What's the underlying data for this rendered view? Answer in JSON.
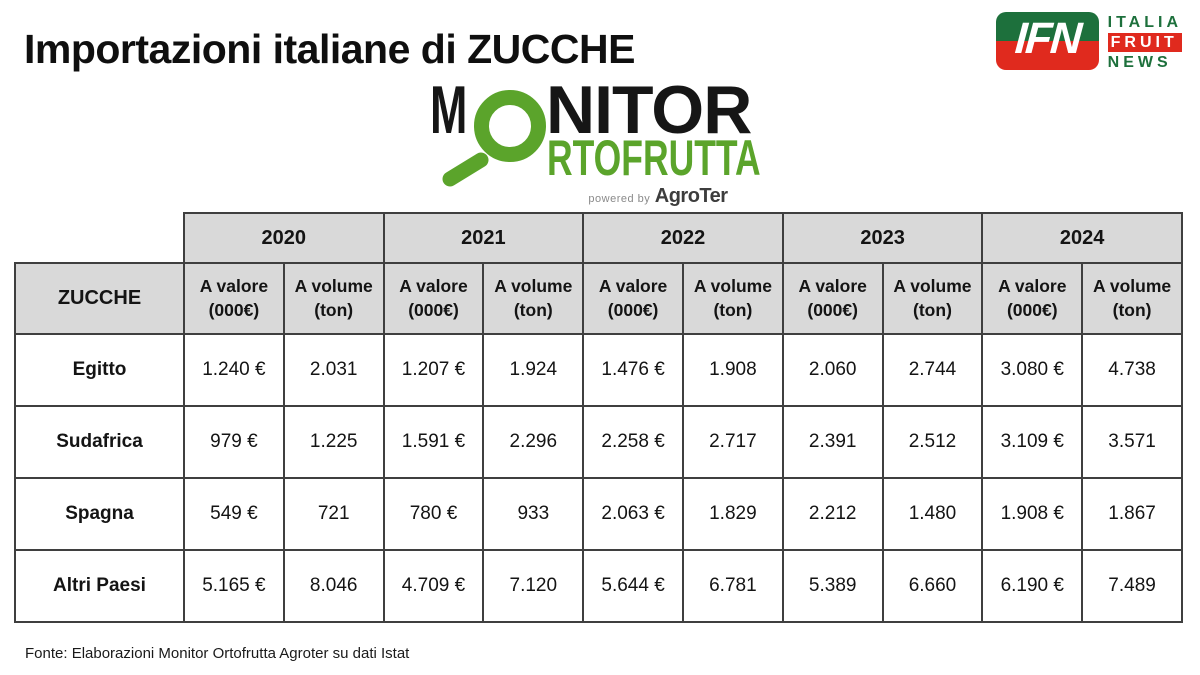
{
  "header": {
    "title": "Importazioni italiane di ZUCCHE"
  },
  "ifn_logo": {
    "acronym": "IFN",
    "lines": [
      "ITALIA",
      "FRUIT",
      "NEWS"
    ],
    "green": "#1d703c",
    "red": "#e02a1e"
  },
  "monitor_logo": {
    "top_prefix": "M",
    "top_suffix": "NITOR",
    "bottom_word": "RTOFRUTTA",
    "powered_by": "powered by",
    "brand": "AgroTer",
    "green": "#5ba42b"
  },
  "table": {
    "corner_label": "ZUCCHE",
    "years": [
      "2020",
      "2021",
      "2022",
      "2023",
      "2024"
    ],
    "subheaders": [
      {
        "line1": "A valore",
        "line2": "(000€)"
      },
      {
        "line1": "A volume",
        "line2": "(ton)"
      }
    ],
    "rows": [
      {
        "label": "Egitto",
        "cells": [
          "1.240 €",
          "2.031",
          "1.207 €",
          "1.924",
          "1.476 €",
          "1.908",
          "2.060",
          "2.744",
          "3.080 €",
          "4.738"
        ]
      },
      {
        "label": "Sudafrica",
        "cells": [
          "979 €",
          "1.225",
          "1.591 €",
          "2.296",
          "2.258 €",
          "2.717",
          "2.391",
          "2.512",
          "3.109 €",
          "3.571"
        ]
      },
      {
        "label": "Spagna",
        "cells": [
          "549 €",
          "721",
          "780 €",
          "933",
          "2.063 €",
          "1.829",
          "2.212",
          "1.480",
          "1.908 €",
          "1.867"
        ]
      },
      {
        "label": "Altri Paesi",
        "cells": [
          "5.165 €",
          "8.046",
          "4.709 €",
          "7.120",
          "5.644 €",
          "6.781",
          "5.389",
          "6.660",
          "6.190 €",
          "7.489"
        ]
      }
    ],
    "header_bg": "#d9d9d9",
    "border_color": "#3f3f3f"
  },
  "footer": {
    "source": "Fonte: Elaborazioni Monitor Ortofrutta Agroter su dati Istat"
  },
  "chart_data": {
    "type": "table",
    "title": "Importazioni italiane di ZUCCHE",
    "subject": "ZUCCHE",
    "years": [
      2020,
      2021,
      2022,
      2023,
      2024
    ],
    "measures": [
      "A valore (000€)",
      "A volume (ton)"
    ],
    "rows": [
      {
        "label": "Egitto",
        "valore_000eur": [
          1240,
          1207,
          1476,
          2060,
          3080
        ],
        "volume_ton": [
          2031,
          1924,
          1908,
          2744,
          4738
        ]
      },
      {
        "label": "Sudafrica",
        "valore_000eur": [
          979,
          1591,
          2258,
          2391,
          3109
        ],
        "volume_ton": [
          1225,
          2296,
          2717,
          2512,
          3571
        ]
      },
      {
        "label": "Spagna",
        "valore_000eur": [
          549,
          780,
          2063,
          2212,
          1908
        ],
        "volume_ton": [
          721,
          933,
          1829,
          1480,
          1867
        ]
      },
      {
        "label": "Altri Paesi",
        "valore_000eur": [
          5165,
          4709,
          5644,
          5389,
          6190
        ],
        "volume_ton": [
          8046,
          7120,
          6781,
          6660,
          7489
        ]
      }
    ],
    "source": "Fonte: Elaborazioni Monitor Ortofrutta Agroter su dati Istat"
  }
}
